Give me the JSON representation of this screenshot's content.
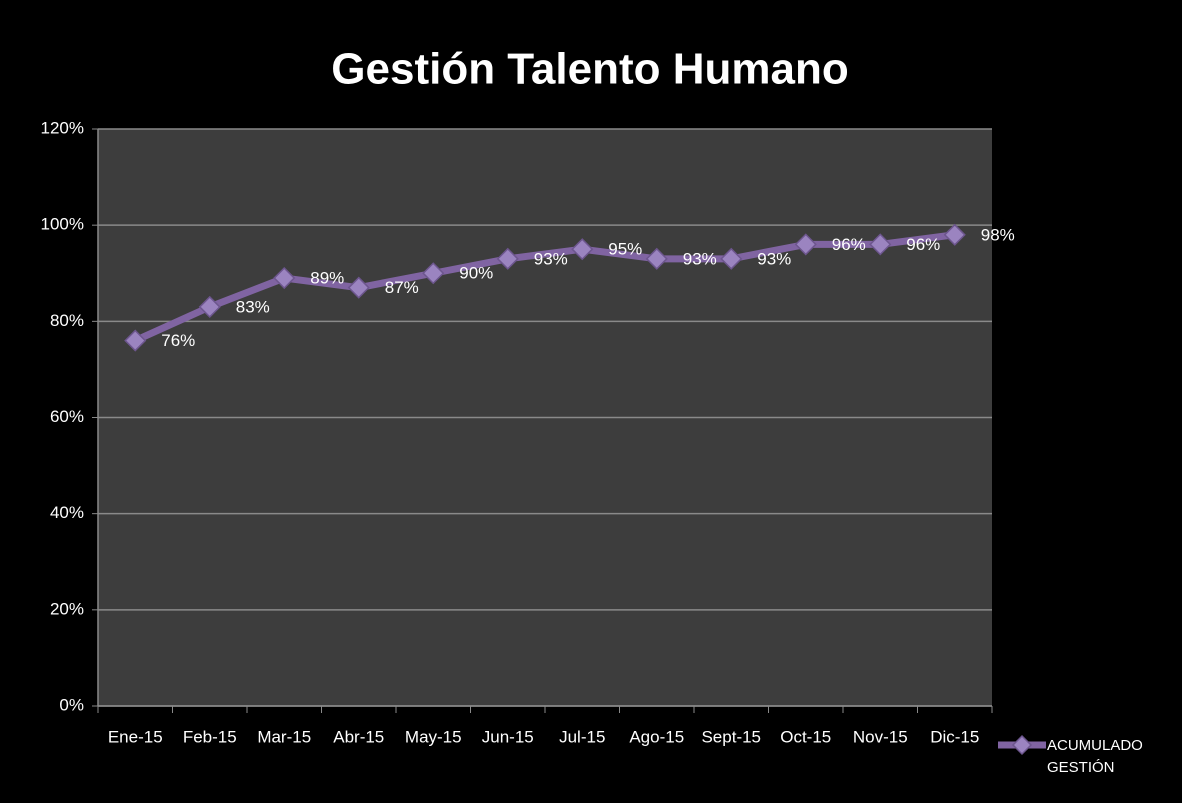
{
  "chart_data": {
    "type": "line",
    "title": "Gestión Talento Humano",
    "categories": [
      "Ene-15",
      "Feb-15",
      "Mar-15",
      "Abr-15",
      "May-15",
      "Jun-15",
      "Jul-15",
      "Ago-15",
      "Sept-15",
      "Oct-15",
      "Nov-15",
      "Dic-15"
    ],
    "series": [
      {
        "name": "ACUMULADO GESTIÓN",
        "color": "#8064a2",
        "values": [
          76,
          83,
          89,
          87,
          90,
          93,
          95,
          93,
          93,
          96,
          96,
          98
        ],
        "value_labels": [
          "76%",
          "83%",
          "89%",
          "87%",
          "90%",
          "93%",
          "95%",
          "93%",
          "93%",
          "96%",
          "96%",
          "98%"
        ]
      }
    ],
    "ylim": [
      0,
      120
    ],
    "yticks": [
      {
        "value": 0,
        "label": "0%"
      },
      {
        "value": 20,
        "label": "20%"
      },
      {
        "value": 40,
        "label": "40%"
      },
      {
        "value": 60,
        "label": "60%"
      },
      {
        "value": 80,
        "label": "80%"
      },
      {
        "value": 100,
        "label": "100%"
      },
      {
        "value": 120,
        "label": "120%"
      }
    ],
    "grid": true,
    "legend": "right"
  }
}
